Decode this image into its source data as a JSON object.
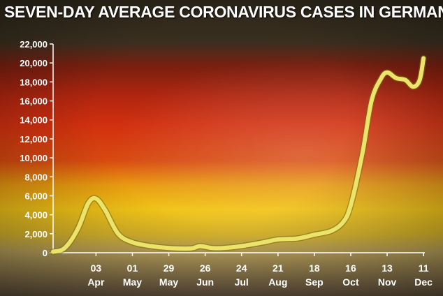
{
  "chart_data": {
    "type": "line",
    "title": "SEVEN-DAY AVERAGE CORONAVIRUS CASES IN GERMANY",
    "xlabel": "",
    "ylabel": "",
    "ylim": [
      0,
      22000
    ],
    "yticks": [
      "0",
      "2,000",
      "4,000",
      "6,000",
      "8,000",
      "10,000",
      "12,000",
      "14,000",
      "16,000",
      "18,000",
      "20,000",
      "22,000"
    ],
    "xticks": [
      {
        "day": "03",
        "month": "Apr"
      },
      {
        "day": "01",
        "month": "May"
      },
      {
        "day": "29",
        "month": "May"
      },
      {
        "day": "26",
        "month": "Jun"
      },
      {
        "day": "24",
        "month": "Jul"
      },
      {
        "day": "21",
        "month": "Aug"
      },
      {
        "day": "18",
        "month": "Sep"
      },
      {
        "day": "16",
        "month": "Oct"
      },
      {
        "day": "13",
        "month": "Nov"
      },
      {
        "day": "11",
        "month": "Dec"
      }
    ],
    "grid": false,
    "legend": "none",
    "line_color": "#ece46a",
    "series": [
      {
        "name": "",
        "x": [
          "2020-03-01",
          "2020-03-10",
          "2020-03-20",
          "2020-03-28",
          "2020-04-03",
          "2020-04-10",
          "2020-04-20",
          "2020-05-01",
          "2020-05-15",
          "2020-05-29",
          "2020-06-15",
          "2020-06-22",
          "2020-07-01",
          "2020-07-10",
          "2020-07-24",
          "2020-08-10",
          "2020-08-21",
          "2020-09-05",
          "2020-09-18",
          "2020-10-01",
          "2020-10-10",
          "2020-10-16",
          "2020-10-25",
          "2020-11-01",
          "2020-11-08",
          "2020-11-13",
          "2020-11-20",
          "2020-11-27",
          "2020-12-03",
          "2020-12-08",
          "2020-12-11"
        ],
        "y": [
          100,
          500,
          2500,
          5200,
          5700,
          4500,
          2000,
          1100,
          700,
          500,
          450,
          700,
          500,
          500,
          700,
          1100,
          1400,
          1500,
          1900,
          2300,
          3200,
          5000,
          10500,
          16000,
          18300,
          19000,
          18400,
          18200,
          17500,
          18200,
          20500
        ]
      }
    ]
  }
}
